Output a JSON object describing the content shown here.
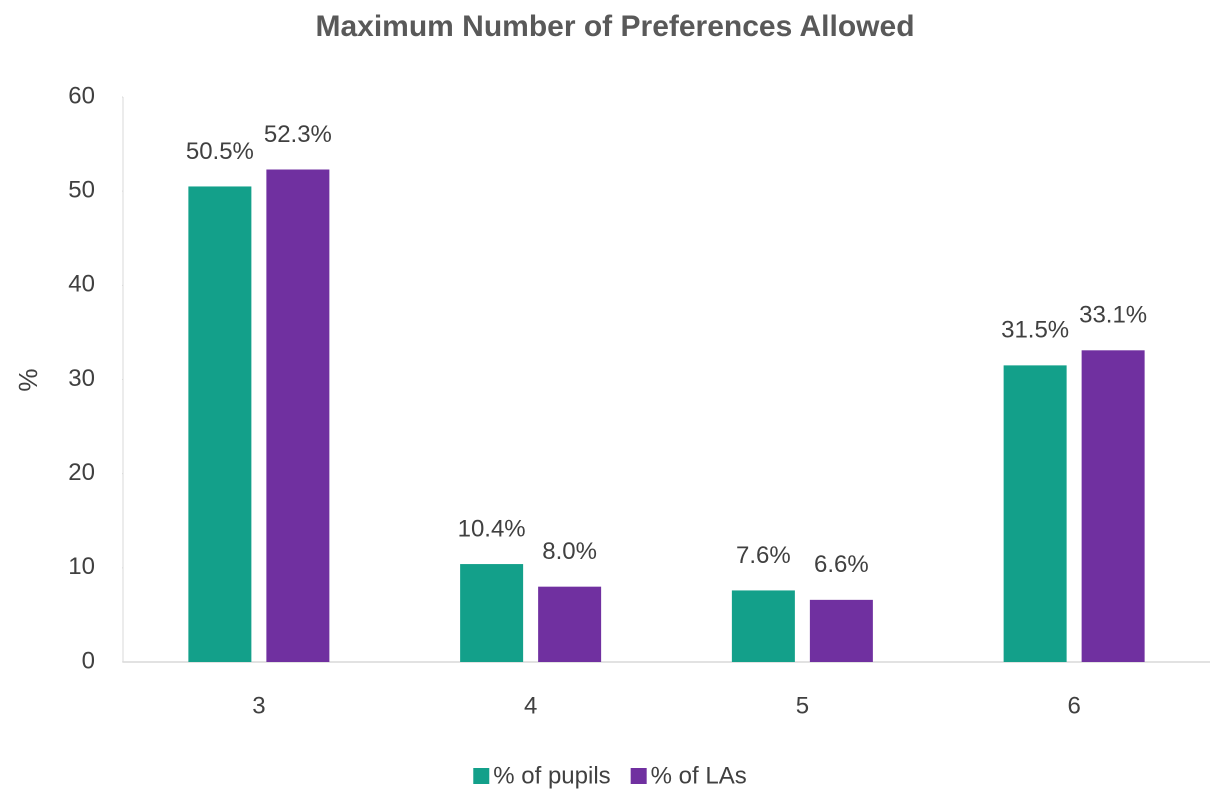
{
  "chart_data": {
    "type": "bar",
    "title": "Maximum Number of Preferences Allowed",
    "y_label": "%",
    "categories": [
      "3",
      "4",
      "5",
      "6"
    ],
    "series": [
      {
        "name": "% of pupils",
        "color": "#13a08a",
        "values": [
          50.5,
          10.4,
          7.6,
          31.5
        ],
        "value_labels": [
          "50.5%",
          "10.4%",
          "7.6%",
          "31.5%"
        ]
      },
      {
        "name": "% of LAs",
        "color": "#7030a0",
        "values": [
          52.3,
          8.0,
          6.6,
          33.1
        ],
        "value_labels": [
          "52.3%",
          "8.0%",
          "6.6%",
          "33.1%"
        ]
      }
    ],
    "ylim": [
      0,
      60
    ],
    "yticks": [
      0,
      10,
      20,
      30,
      40,
      50,
      60
    ],
    "grid": false,
    "legend": "bottom"
  }
}
